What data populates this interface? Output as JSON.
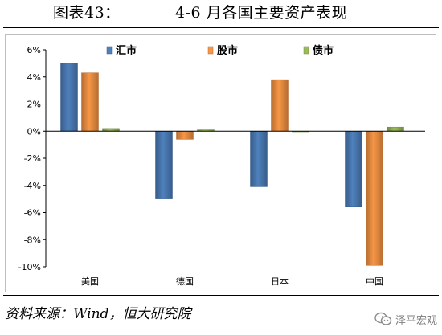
{
  "header": {
    "label": "图表43：",
    "text": "4-6 月各国主要资产表现"
  },
  "source": "资料来源：Wind，恒大研究院",
  "watermark": "泽平宏观",
  "colors": {
    "fx": "#4f81bd",
    "fx_dark": "#385d8a",
    "equity": "#f79646",
    "equity_dark": "#b66d31",
    "bond": "#9bbb59",
    "bond_dark": "#71893f"
  },
  "chart_data": {
    "type": "bar",
    "categories": [
      "美国",
      "德国",
      "日本",
      "中国"
    ],
    "series": [
      {
        "name": "汇市",
        "values": [
          5.0,
          -5.0,
          -4.1,
          -5.6
        ]
      },
      {
        "name": "股市",
        "values": [
          4.3,
          -0.6,
          3.8,
          -9.9
        ]
      },
      {
        "name": "债市",
        "values": [
          0.2,
          0.1,
          0.0,
          0.3
        ]
      }
    ],
    "yticks": [
      "6%",
      "4%",
      "2%",
      "0%",
      "-2%",
      "-4%",
      "-6%",
      "-8%",
      "-10%"
    ],
    "ylim": [
      -10,
      6
    ],
    "legend": "top",
    "grid": false
  }
}
